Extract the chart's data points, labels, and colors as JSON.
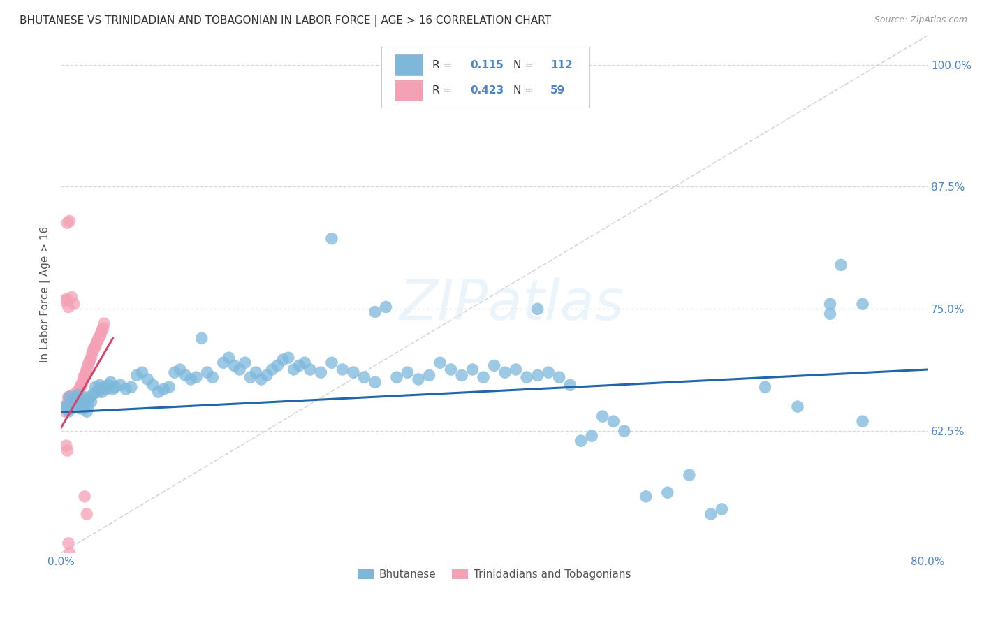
{
  "title": "BHUTANESE VS TRINIDADIAN AND TOBAGONIAN IN LABOR FORCE | AGE > 16 CORRELATION CHART",
  "source": "Source: ZipAtlas.com",
  "ylabel": "In Labor Force | Age > 16",
  "xlim": [
    0.0,
    0.8
  ],
  "ylim": [
    0.5,
    1.03
  ],
  "x_ticks": [
    0.0,
    0.1,
    0.2,
    0.3,
    0.4,
    0.5,
    0.6,
    0.7,
    0.8
  ],
  "x_tick_labels": [
    "0.0%",
    "",
    "",
    "",
    "",
    "",
    "",
    "",
    "80.0%"
  ],
  "y_ticks": [
    0.625,
    0.75,
    0.875,
    1.0
  ],
  "y_tick_labels": [
    "62.5%",
    "75.0%",
    "87.5%",
    "100.0%"
  ],
  "legend_labels": [
    "Bhutanese",
    "Trinidadians and Tobagonians"
  ],
  "R_blue": "0.115",
  "N_blue": "112",
  "R_pink": "0.423",
  "N_pink": "59",
  "blue_color": "#7db8db",
  "pink_color": "#f4a0b5",
  "blue_line_color": "#2166ac",
  "pink_line_color": "#d6446e",
  "ref_line_color": "#cccccc",
  "background_color": "#ffffff",
  "watermark_text": "ZIPatlas",
  "blue_trend_x": [
    0.0,
    0.8
  ],
  "blue_trend_y": [
    0.644,
    0.688
  ],
  "pink_trend_x": [
    0.0,
    0.048
  ],
  "pink_trend_y": [
    0.628,
    0.72
  ],
  "blue_x": [
    0.004,
    0.006,
    0.007,
    0.008,
    0.01,
    0.01,
    0.012,
    0.013,
    0.015,
    0.016,
    0.017,
    0.018,
    0.019,
    0.02,
    0.021,
    0.022,
    0.024,
    0.025,
    0.026,
    0.027,
    0.028,
    0.03,
    0.032,
    0.034,
    0.035,
    0.036,
    0.038,
    0.04,
    0.042,
    0.044,
    0.046,
    0.048,
    0.05,
    0.055,
    0.06,
    0.065,
    0.07,
    0.075,
    0.08,
    0.085,
    0.09,
    0.095,
    0.1,
    0.105,
    0.11,
    0.115,
    0.12,
    0.125,
    0.13,
    0.135,
    0.14,
    0.15,
    0.155,
    0.16,
    0.165,
    0.17,
    0.175,
    0.18,
    0.185,
    0.19,
    0.195,
    0.2,
    0.205,
    0.21,
    0.215,
    0.22,
    0.225,
    0.23,
    0.24,
    0.25,
    0.26,
    0.27,
    0.28,
    0.29,
    0.3,
    0.31,
    0.32,
    0.33,
    0.34,
    0.35,
    0.36,
    0.37,
    0.38,
    0.39,
    0.4,
    0.41,
    0.42,
    0.43,
    0.44,
    0.45,
    0.46,
    0.47,
    0.48,
    0.49,
    0.5,
    0.51,
    0.52,
    0.54,
    0.56,
    0.58,
    0.6,
    0.61,
    0.25,
    0.72,
    0.74,
    0.71,
    0.68,
    0.71,
    0.29,
    0.44,
    0.65,
    0.74
  ],
  "blue_y": [
    0.65,
    0.648,
    0.645,
    0.66,
    0.655,
    0.648,
    0.652,
    0.66,
    0.658,
    0.662,
    0.655,
    0.648,
    0.65,
    0.653,
    0.66,
    0.648,
    0.645,
    0.65,
    0.658,
    0.66,
    0.655,
    0.663,
    0.67,
    0.665,
    0.668,
    0.672,
    0.665,
    0.67,
    0.668,
    0.672,
    0.675,
    0.668,
    0.67,
    0.672,
    0.668,
    0.67,
    0.682,
    0.685,
    0.678,
    0.672,
    0.665,
    0.668,
    0.67,
    0.685,
    0.688,
    0.682,
    0.678,
    0.68,
    0.72,
    0.685,
    0.68,
    0.695,
    0.7,
    0.692,
    0.688,
    0.695,
    0.68,
    0.685,
    0.678,
    0.682,
    0.688,
    0.692,
    0.698,
    0.7,
    0.688,
    0.692,
    0.695,
    0.688,
    0.685,
    0.695,
    0.688,
    0.685,
    0.68,
    0.675,
    0.752,
    0.68,
    0.685,
    0.678,
    0.682,
    0.695,
    0.688,
    0.682,
    0.688,
    0.68,
    0.692,
    0.685,
    0.688,
    0.68,
    0.682,
    0.685,
    0.68,
    0.672,
    0.615,
    0.62,
    0.64,
    0.635,
    0.625,
    0.558,
    0.562,
    0.58,
    0.54,
    0.545,
    0.822,
    0.795,
    0.755,
    0.755,
    0.65,
    0.745,
    0.747,
    0.75,
    0.67,
    0.635
  ],
  "pink_x": [
    0.003,
    0.004,
    0.005,
    0.006,
    0.007,
    0.007,
    0.008,
    0.008,
    0.009,
    0.01,
    0.01,
    0.011,
    0.012,
    0.012,
    0.013,
    0.013,
    0.014,
    0.014,
    0.015,
    0.015,
    0.016,
    0.016,
    0.017,
    0.018,
    0.019,
    0.02,
    0.021,
    0.022,
    0.023,
    0.024,
    0.025,
    0.026,
    0.027,
    0.028,
    0.029,
    0.03,
    0.031,
    0.032,
    0.033,
    0.034,
    0.035,
    0.036,
    0.037,
    0.038,
    0.039,
    0.04,
    0.006,
    0.008,
    0.01,
    0.012,
    0.004,
    0.005,
    0.007,
    0.022,
    0.024,
    0.005,
    0.006,
    0.007,
    0.008
  ],
  "pink_y": [
    0.65,
    0.645,
    0.648,
    0.652,
    0.658,
    0.66,
    0.655,
    0.648,
    0.652,
    0.65,
    0.658,
    0.662,
    0.655,
    0.65,
    0.66,
    0.655,
    0.66,
    0.658,
    0.665,
    0.658,
    0.662,
    0.66,
    0.668,
    0.67,
    0.672,
    0.675,
    0.68,
    0.682,
    0.685,
    0.688,
    0.692,
    0.695,
    0.698,
    0.7,
    0.705,
    0.708,
    0.71,
    0.712,
    0.715,
    0.718,
    0.72,
    0.722,
    0.725,
    0.728,
    0.73,
    0.735,
    0.838,
    0.84,
    0.762,
    0.755,
    0.758,
    0.76,
    0.752,
    0.558,
    0.54,
    0.61,
    0.605,
    0.51,
    0.5
  ]
}
